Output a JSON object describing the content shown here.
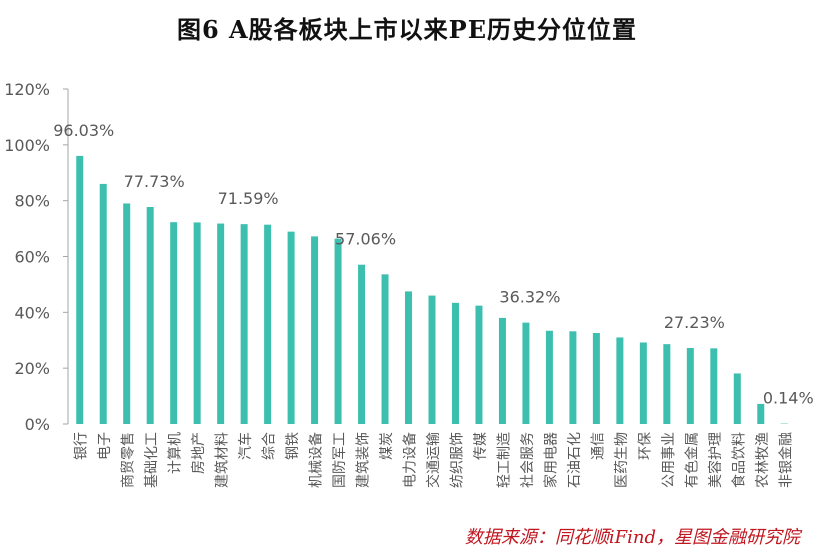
{
  "title": "图6 A股各板块上市以来PE历史分位位置",
  "source": "数据来源：同花顺iFind，星图金融研究院",
  "colors": {
    "bar": "#3cbfae",
    "axis_text": "#595959",
    "axis_line": "#a6a6a6"
  },
  "chart_data": {
    "type": "bar",
    "ylim": [
      0,
      120
    ],
    "yticks": [
      "0%",
      "20%",
      "40%",
      "60%",
      "80%",
      "100%",
      "120%"
    ],
    "grid": false,
    "categories": [
      "银行",
      "电子",
      "商贸零售",
      "基础化工",
      "计算机",
      "房地产",
      "建筑材料",
      "汽车",
      "综合",
      "钢铁",
      "机械设备",
      "国防军工",
      "建筑装饰",
      "煤炭",
      "电力设备",
      "交通运输",
      "纺织服饰",
      "传媒",
      "轻工制造",
      "社会服务",
      "家用电器",
      "石油石化",
      "通信",
      "医药生物",
      "环保",
      "公用事业",
      "有色金属",
      "美容护理",
      "食品饮料",
      "农林牧渔",
      "非银金融"
    ],
    "values": [
      96.03,
      86,
      79,
      77.73,
      72.3,
      72.2,
      71.8,
      71.59,
      71.4,
      68.9,
      67.2,
      66.4,
      57.06,
      53.6,
      47.5,
      46,
      43.4,
      42.4,
      38,
      36.32,
      33.4,
      33.2,
      32.6,
      31,
      29.2,
      28.6,
      27.23,
      27.1,
      18.1,
      7.2,
      0.14
    ],
    "annotations": [
      {
        "label": "96.03%",
        "index": 0
      },
      {
        "label": "77.73%",
        "index": 3
      },
      {
        "label": "71.59%",
        "index": 7
      },
      {
        "label": "57.06%",
        "index": 12
      },
      {
        "label": "36.32%",
        "index": 19
      },
      {
        "label": "27.23%",
        "index": 26
      },
      {
        "label": "0.14%",
        "index": 30
      }
    ]
  }
}
